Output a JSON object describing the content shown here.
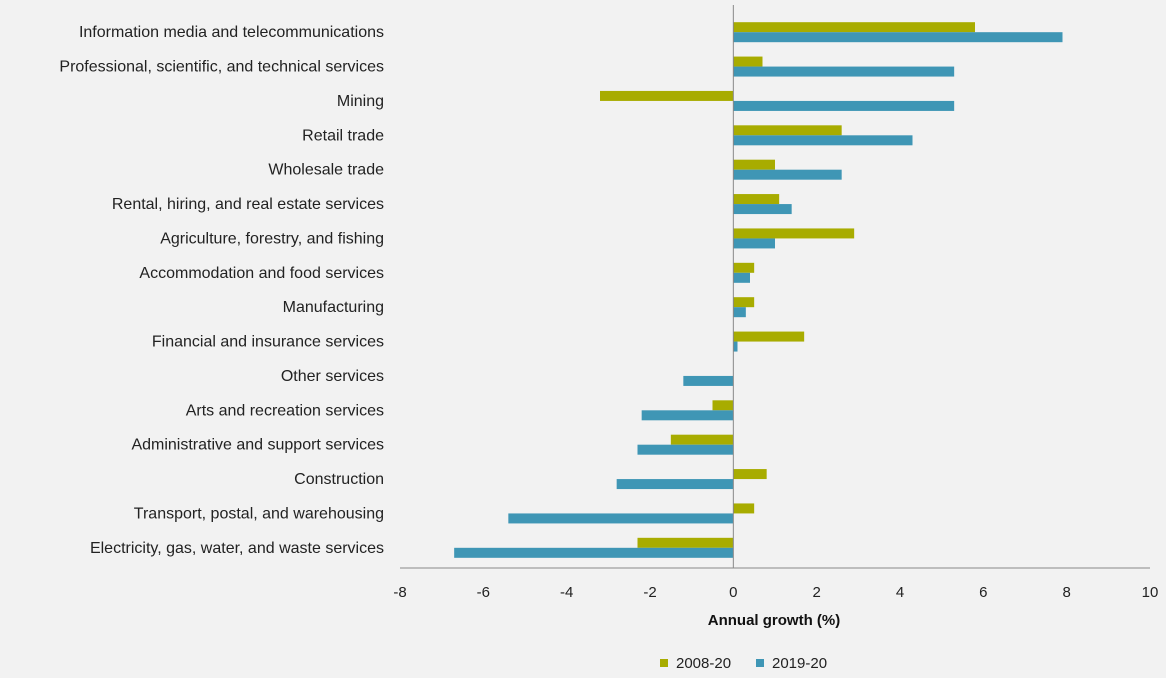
{
  "chart_data": {
    "type": "bar",
    "orientation": "horizontal",
    "categories": [
      "Information media and telecommunications",
      "Professional, scientific, and technical services",
      "Mining",
      "Retail trade",
      "Wholesale trade",
      "Rental, hiring, and real estate services",
      "Agriculture, forestry, and fishing",
      "Accommodation and food services",
      "Manufacturing",
      "Financial and insurance services",
      "Other services",
      "Arts and recreation services",
      "Administrative and support services",
      "Construction",
      "Transport, postal, and warehousing",
      "Electricity, gas, water, and waste services"
    ],
    "series": [
      {
        "name": "2008-20",
        "color": "#a8ac00",
        "values": [
          5.8,
          0.7,
          -3.2,
          2.6,
          1.0,
          1.1,
          2.9,
          0.5,
          0.5,
          1.7,
          0.0,
          -0.5,
          -1.5,
          0.8,
          0.5,
          -2.3
        ]
      },
      {
        "name": "2019-20",
        "color": "#3f96b5",
        "values": [
          7.9,
          5.3,
          5.3,
          4.3,
          2.6,
          1.4,
          1.0,
          0.4,
          0.3,
          0.1,
          -1.2,
          -2.2,
          -2.3,
          -2.8,
          -5.4,
          -6.7
        ]
      }
    ],
    "xlabel": "Annual growth (%)",
    "xlim": [
      -8,
      10
    ],
    "xticks": [
      "-8",
      "-6",
      "-4",
      "-2",
      "0",
      "2",
      "4",
      "6",
      "8",
      "10"
    ],
    "grid": false,
    "legend_position": "bottom"
  }
}
